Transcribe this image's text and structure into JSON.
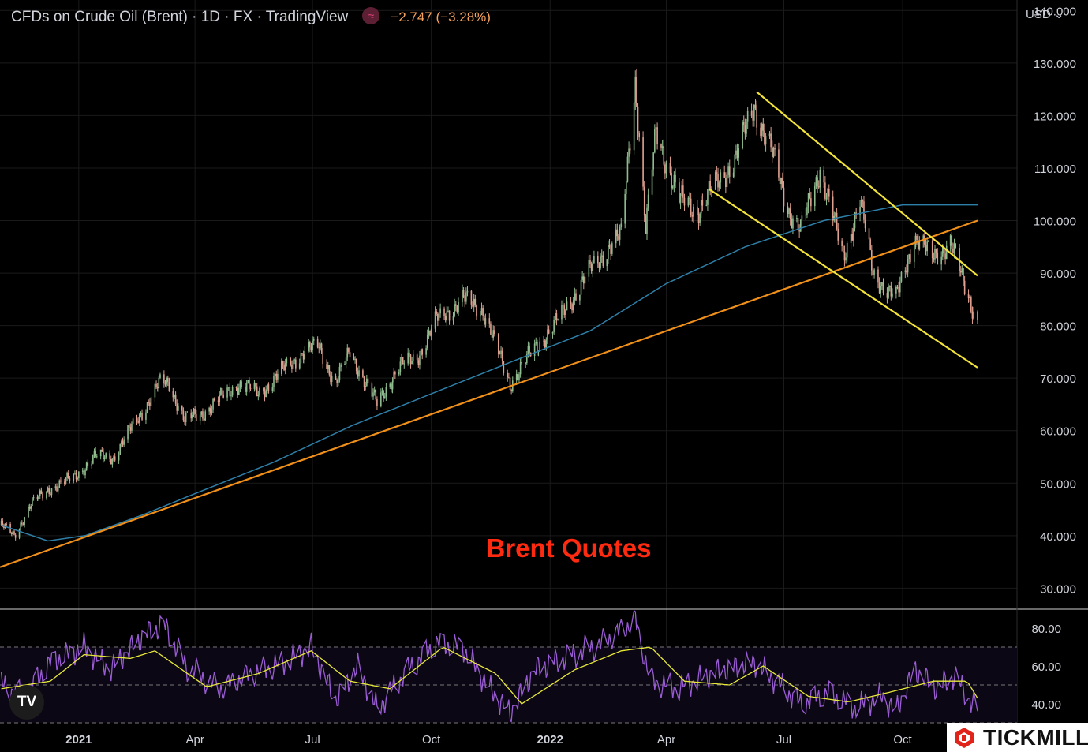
{
  "header": {
    "title": "CFDs on Crude Oil (Brent) · 1D · FX  · TradingView",
    "change": "−2.747 (−3.28%)",
    "currency": "USD",
    "currency_icon": "chevron-down-icon"
  },
  "annotation": "Brent Quotes",
  "colors": {
    "background": "#000000",
    "up_candle": "#8fbc8f",
    "down_candle": "#e0a090",
    "sma": "#2e7fa8",
    "support_line": "#f0901a",
    "channel": "#f2e23a",
    "rsi": "#9a5cd4",
    "rsi_ma": "#e6e83a",
    "annotation": "#ff2a10"
  },
  "branding": {
    "tradingview": "TV",
    "broker": "TICKMILL"
  },
  "chart_data": [
    {
      "type": "candlestick",
      "title": "CFDs on Crude Oil (Brent) · 1D · FX  · TradingView",
      "x_tick_labels": [
        "2021",
        "Apr",
        "Jul",
        "Oct",
        "2022",
        "Apr",
        "Jul",
        "Oct"
      ],
      "y_tick_labels": [
        "30.000",
        "40.000",
        "50.000",
        "60.000",
        "70.000",
        "80.000",
        "90.000",
        "100.000",
        "110.000",
        "120.000",
        "130.000",
        "140.000"
      ],
      "ylim": [
        26,
        142
      ],
      "xlim": [
        "2020-11-01",
        "2022-11-28"
      ],
      "y_axis_position": "right",
      "grid": true,
      "close_series": {
        "name": "Brent close",
        "x": [
          "2020-11-02",
          "2020-11-12",
          "2020-11-25",
          "2020-12-10",
          "2020-12-28",
          "2021-01-13",
          "2021-01-28",
          "2021-02-12",
          "2021-03-05",
          "2021-03-12",
          "2021-03-24",
          "2021-04-05",
          "2021-04-20",
          "2021-05-05",
          "2021-05-20",
          "2021-06-10",
          "2021-06-24",
          "2021-07-06",
          "2021-07-19",
          "2021-07-30",
          "2021-08-20",
          "2021-09-05",
          "2021-09-20",
          "2021-10-05",
          "2021-10-25",
          "2021-11-10",
          "2021-11-26",
          "2021-12-01",
          "2021-12-15",
          "2022-01-10",
          "2022-01-25",
          "2022-02-15",
          "2022-02-25",
          "2022-03-08",
          "2022-03-16",
          "2022-03-24",
          "2022-04-11",
          "2022-04-25",
          "2022-05-10",
          "2022-05-25",
          "2022-06-08",
          "2022-06-20",
          "2022-07-05",
          "2022-07-14",
          "2022-07-29",
          "2022-08-16",
          "2022-08-29",
          "2022-09-08",
          "2022-09-26",
          "2022-10-10",
          "2022-10-24",
          "2022-11-07",
          "2022-11-17",
          "2022-11-28"
        ],
        "y": [
          42,
          40,
          46,
          49,
          51,
          55,
          55,
          61,
          69,
          69,
          62,
          63,
          66,
          69,
          67,
          72,
          75,
          76,
          69,
          75,
          65,
          72,
          74,
          81,
          85,
          83,
          72,
          69,
          74,
          82,
          88,
          95,
          97,
          127,
          98,
          117,
          104,
          102,
          107,
          112,
          122,
          114,
          102,
          98,
          110,
          93,
          104,
          90,
          85,
          97,
          93,
          96,
          88,
          81
        ]
      },
      "sma_series": {
        "name": "SMA",
        "x": [
          "2020-11-02",
          "2020-12-08",
          "2021-01-06",
          "2021-02-20",
          "2021-04-01",
          "2021-06-01",
          "2021-08-01",
          "2021-10-01",
          "2021-12-01",
          "2022-02-01",
          "2022-04-01",
          "2022-06-01",
          "2022-08-01",
          "2022-10-01",
          "2022-11-28"
        ],
        "y": [
          42,
          39,
          40,
          44,
          48,
          54,
          61,
          67,
          73,
          79,
          88,
          95,
          100,
          103,
          103
        ]
      },
      "support_line": {
        "x": [
          "2020-11-01",
          "2022-11-28"
        ],
        "y": [
          34,
          100
        ]
      },
      "channel_upper": {
        "x": [
          "2022-06-10",
          "2022-11-28"
        ],
        "y": [
          124.5,
          89.5
        ]
      },
      "channel_lower": {
        "x": [
          "2022-05-04",
          "2022-11-28"
        ],
        "y": [
          106,
          72
        ]
      },
      "annotations": [
        "Brent Quotes"
      ]
    },
    {
      "type": "line",
      "title": "",
      "y_tick_labels": [
        "40.00",
        "60.00",
        "80.00"
      ],
      "ylim": [
        30,
        90
      ],
      "bands": [
        30,
        50,
        70
      ],
      "series": [
        {
          "x": [
            "2020-11-02",
            "2020-11-20",
            "2020-12-10",
            "2021-01-05",
            "2021-01-25",
            "2021-02-20",
            "2021-03-08",
            "2021-03-25",
            "2021-04-20",
            "2021-05-15",
            "2021-06-10",
            "2021-06-30",
            "2021-07-19",
            "2021-08-05",
            "2021-08-20",
            "2021-09-10",
            "2021-10-05",
            "2021-10-25",
            "2021-11-15",
            "2021-12-01",
            "2021-12-20",
            "2022-01-15",
            "2022-02-10",
            "2022-03-08",
            "2022-03-20",
            "2022-04-10",
            "2022-05-10",
            "2022-06-08",
            "2022-06-25",
            "2022-07-14",
            "2022-08-05",
            "2022-08-25",
            "2022-09-15",
            "2022-09-26",
            "2022-10-10",
            "2022-10-28",
            "2022-11-10",
            "2022-11-28"
          ],
          "y": [
            50,
            44,
            62,
            70,
            58,
            76,
            82,
            60,
            48,
            56,
            62,
            70,
            42,
            60,
            37,
            56,
            72,
            70,
            48,
            35,
            58,
            65,
            72,
            84,
            52,
            48,
            57,
            62,
            52,
            40,
            46,
            38,
            44,
            36,
            58,
            48,
            55,
            36
          ]
        },
        {
          "x": [
            "2020-11-02",
            "2020-12-10",
            "2021-01-05",
            "2021-02-10",
            "2021-03-01",
            "2021-04-10",
            "2021-05-20",
            "2021-06-30",
            "2021-07-30",
            "2021-08-30",
            "2021-10-10",
            "2021-11-20",
            "2021-12-10",
            "2022-01-20",
            "2022-02-25",
            "2022-03-20",
            "2022-04-15",
            "2022-05-20",
            "2022-06-15",
            "2022-07-20",
            "2022-08-20",
            "2022-09-20",
            "2022-10-25",
            "2022-11-20",
            "2022-11-28"
          ],
          "y": [
            48,
            52,
            66,
            64,
            68,
            49,
            56,
            68,
            52,
            48,
            70,
            56,
            40,
            58,
            68,
            70,
            52,
            50,
            60,
            44,
            41,
            46,
            52,
            52,
            43
          ]
        }
      ]
    }
  ]
}
